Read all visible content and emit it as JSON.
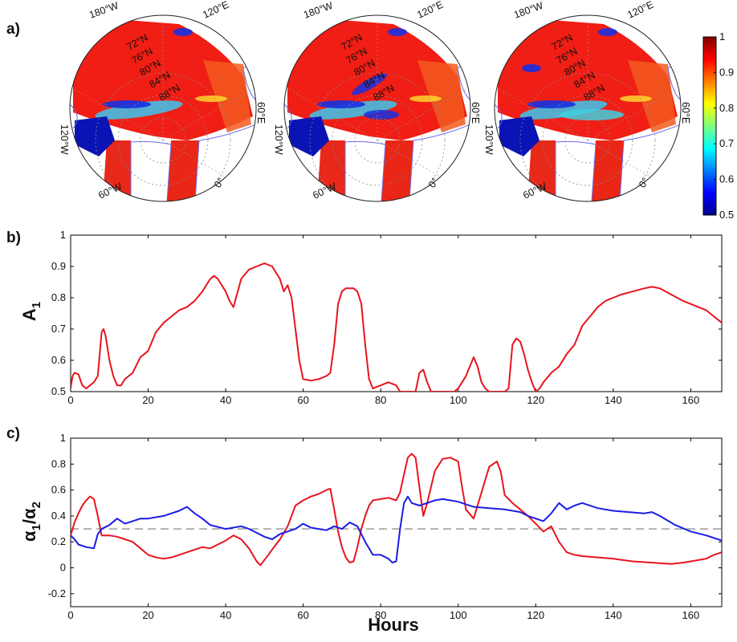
{
  "panel_a": {
    "label": "a)",
    "maps": [
      {
        "lon_labels": [
          "180°W",
          "120°E",
          "120°W",
          "60°E",
          "60°W",
          "0°"
        ],
        "lat_labels": [
          "72°N",
          "76°N",
          "80°N",
          "84°N",
          "88°N"
        ]
      },
      {
        "lon_labels": [
          "180°W",
          "120°E",
          "120°W",
          "60°E",
          "60°W",
          "0°"
        ],
        "lat_labels": [
          "72°N",
          "76°N",
          "80°N",
          "84°N",
          "88°N"
        ]
      },
      {
        "lon_labels": [
          "180°W",
          "120°E",
          "120°W",
          "60°E",
          "60°W",
          "0°"
        ],
        "lat_labels": [
          "72°N",
          "76°N",
          "80°N",
          "84°N",
          "88°N"
        ]
      }
    ],
    "colorbar": {
      "ticks": [
        "1",
        "0.9",
        "0.8",
        "0.7",
        "0.6",
        "0.5"
      ],
      "min": 0.5,
      "max": 1.0
    }
  },
  "panel_b": {
    "label": "b)",
    "ylabel_main": "A",
    "ylabel_sub": "1"
  },
  "panel_c": {
    "label": "c)",
    "ylabel_main": "α",
    "ylabel_sub1": "1",
    "ylabel_sub2": "2",
    "xlabel": "Hours"
  },
  "colors": {
    "red": "#e8141e",
    "blue": "#1c1ce6",
    "dashed": "#7a7a7a",
    "land_outline": "#6a6ae8"
  },
  "chart_data": [
    {
      "type": "line",
      "panel": "b",
      "xlim": [
        0,
        168
      ],
      "ylim": [
        0.5,
        1.0
      ],
      "xticks": [
        0,
        20,
        40,
        60,
        80,
        100,
        120,
        140,
        160
      ],
      "yticks": [
        0.5,
        0.6,
        0.7,
        0.8,
        0.9,
        1.0
      ],
      "series": [
        {
          "color": "#e8141e",
          "x": [
            0,
            0.5,
            1,
            2,
            3,
            4,
            5,
            6,
            7,
            7.5,
            8,
            8.5,
            9,
            10,
            11,
            12,
            13,
            14,
            15,
            16,
            18,
            20,
            22,
            24,
            26,
            28,
            30,
            32,
            34,
            36,
            37,
            38,
            40,
            41,
            42,
            44,
            46,
            48,
            50,
            52,
            53,
            54,
            55,
            56,
            57,
            58,
            59,
            60,
            62,
            64,
            66,
            67,
            68,
            69,
            70,
            71,
            72,
            73,
            74,
            75,
            76,
            77,
            78,
            80,
            82,
            84,
            85,
            86,
            88,
            89,
            90,
            91,
            92,
            93,
            96,
            99,
            100,
            101,
            102,
            103,
            104,
            105,
            106,
            107,
            108,
            110,
            112,
            113,
            114,
            115,
            116,
            117,
            118,
            119,
            120,
            121,
            122,
            124,
            126,
            128,
            130,
            132,
            134,
            136,
            138,
            140,
            142,
            145,
            148,
            150,
            152,
            155,
            158,
            160,
            162,
            164,
            166,
            168
          ],
          "y": [
            0.51,
            0.55,
            0.56,
            0.555,
            0.52,
            0.51,
            0.52,
            0.53,
            0.55,
            0.62,
            0.69,
            0.7,
            0.68,
            0.6,
            0.55,
            0.52,
            0.52,
            0.54,
            0.55,
            0.56,
            0.61,
            0.63,
            0.69,
            0.72,
            0.74,
            0.76,
            0.77,
            0.79,
            0.82,
            0.86,
            0.87,
            0.86,
            0.82,
            0.79,
            0.77,
            0.86,
            0.89,
            0.9,
            0.91,
            0.9,
            0.88,
            0.86,
            0.82,
            0.84,
            0.8,
            0.7,
            0.6,
            0.54,
            0.535,
            0.54,
            0.55,
            0.56,
            0.65,
            0.78,
            0.82,
            0.83,
            0.83,
            0.83,
            0.82,
            0.78,
            0.65,
            0.54,
            0.51,
            0.52,
            0.53,
            0.52,
            0.5,
            0.5,
            0.5,
            0.5,
            0.56,
            0.57,
            0.53,
            0.5,
            0.5,
            0.5,
            0.51,
            0.53,
            0.55,
            0.58,
            0.61,
            0.58,
            0.53,
            0.51,
            0.5,
            0.5,
            0.5,
            0.51,
            0.65,
            0.67,
            0.66,
            0.62,
            0.57,
            0.53,
            0.5,
            0.51,
            0.53,
            0.56,
            0.58,
            0.62,
            0.65,
            0.71,
            0.74,
            0.77,
            0.79,
            0.8,
            0.81,
            0.82,
            0.83,
            0.835,
            0.83,
            0.81,
            0.79,
            0.78,
            0.77,
            0.76,
            0.74,
            0.72
          ]
        }
      ]
    },
    {
      "type": "line",
      "panel": "c",
      "xlim": [
        0,
        168
      ],
      "ylim": [
        -0.3,
        1.0
      ],
      "xticks": [
        0,
        20,
        40,
        60,
        80,
        100,
        120,
        140,
        160
      ],
      "yticks": [
        -0.2,
        0,
        0.2,
        0.4,
        0.6,
        0.8,
        1.0
      ],
      "reference_line": 0.3,
      "series": [
        {
          "color": "#e8141e",
          "x": [
            0,
            1,
            2,
            3,
            4,
            5,
            6,
            7,
            8,
            10,
            12,
            14,
            16,
            18,
            20,
            22,
            24,
            26,
            28,
            30,
            32,
            34,
            36,
            38,
            40,
            42,
            44,
            46,
            48,
            49,
            50,
            52,
            54,
            56,
            58,
            60,
            62,
            64,
            66,
            67,
            68,
            69,
            70,
            71,
            72,
            73,
            74,
            75,
            76,
            77,
            78,
            80,
            82,
            84,
            85,
            86,
            87,
            88,
            89,
            90,
            91,
            92,
            94,
            96,
            98,
            100,
            101,
            102,
            104,
            106,
            108,
            110,
            111,
            112,
            114,
            116,
            118,
            120,
            122,
            124,
            126,
            128,
            130,
            132,
            136,
            140,
            145,
            150,
            155,
            158,
            160,
            164,
            166,
            168
          ],
          "y": [
            0.25,
            0.35,
            0.42,
            0.48,
            0.52,
            0.55,
            0.53,
            0.4,
            0.25,
            0.25,
            0.24,
            0.22,
            0.2,
            0.15,
            0.1,
            0.08,
            0.07,
            0.08,
            0.1,
            0.12,
            0.14,
            0.16,
            0.15,
            0.18,
            0.21,
            0.25,
            0.22,
            0.15,
            0.05,
            0.02,
            0.06,
            0.14,
            0.22,
            0.32,
            0.48,
            0.52,
            0.55,
            0.57,
            0.6,
            0.61,
            0.45,
            0.28,
            0.16,
            0.08,
            0.04,
            0.05,
            0.16,
            0.3,
            0.4,
            0.48,
            0.52,
            0.53,
            0.54,
            0.52,
            0.58,
            0.72,
            0.85,
            0.88,
            0.85,
            0.62,
            0.4,
            0.5,
            0.75,
            0.84,
            0.85,
            0.82,
            0.62,
            0.45,
            0.38,
            0.58,
            0.78,
            0.82,
            0.74,
            0.56,
            0.5,
            0.45,
            0.4,
            0.34,
            0.28,
            0.32,
            0.2,
            0.12,
            0.1,
            0.09,
            0.08,
            0.07,
            0.05,
            0.04,
            0.03,
            0.04,
            0.05,
            0.07,
            0.1,
            0.12
          ]
        },
        {
          "color": "#1c1ce6",
          "x": [
            0,
            1,
            2,
            4,
            6,
            7,
            8,
            10,
            12,
            14,
            16,
            18,
            20,
            24,
            28,
            30,
            32,
            34,
            36,
            40,
            44,
            46,
            48,
            50,
            52,
            54,
            56,
            58,
            60,
            62,
            64,
            66,
            68,
            70,
            72,
            74,
            76,
            78,
            80,
            82,
            83,
            84,
            85,
            86,
            87,
            88,
            90,
            92,
            94,
            96,
            98,
            100,
            102,
            104,
            108,
            112,
            116,
            118,
            120,
            122,
            124,
            126,
            128,
            130,
            132,
            136,
            140,
            144,
            148,
            150,
            152,
            156,
            160,
            164,
            168
          ],
          "y": [
            0.25,
            0.22,
            0.18,
            0.16,
            0.15,
            0.26,
            0.3,
            0.33,
            0.38,
            0.34,
            0.36,
            0.38,
            0.38,
            0.4,
            0.44,
            0.47,
            0.42,
            0.38,
            0.33,
            0.3,
            0.32,
            0.3,
            0.27,
            0.24,
            0.22,
            0.26,
            0.28,
            0.3,
            0.34,
            0.31,
            0.3,
            0.29,
            0.32,
            0.3,
            0.35,
            0.32,
            0.2,
            0.1,
            0.1,
            0.07,
            0.04,
            0.05,
            0.3,
            0.5,
            0.55,
            0.5,
            0.48,
            0.5,
            0.52,
            0.53,
            0.52,
            0.51,
            0.49,
            0.47,
            0.46,
            0.45,
            0.43,
            0.4,
            0.38,
            0.36,
            0.42,
            0.5,
            0.45,
            0.48,
            0.5,
            0.46,
            0.44,
            0.43,
            0.42,
            0.43,
            0.4,
            0.33,
            0.28,
            0.25,
            0.21
          ]
        }
      ]
    }
  ]
}
